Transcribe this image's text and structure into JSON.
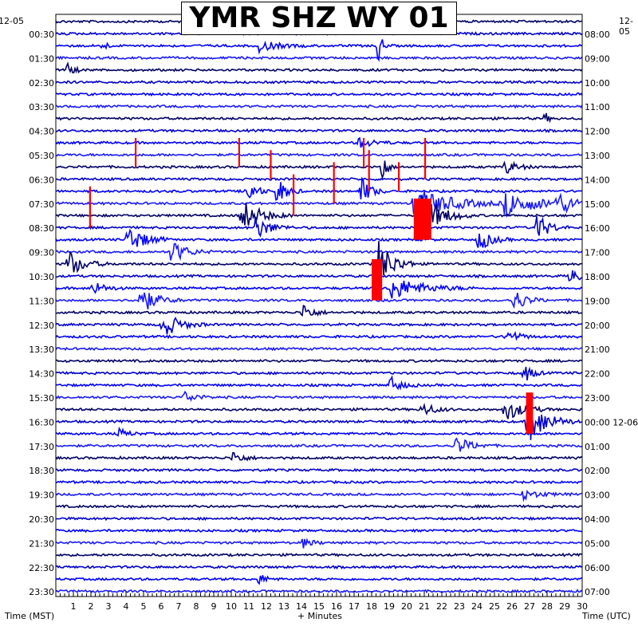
{
  "chart_data": {
    "type": "helicorder",
    "title": "YMR SHZ WY 01",
    "start_date_left": "12-05",
    "start_date_right": "12-05",
    "xlabel": "+ Minutes",
    "left_axis_title": "Time (MST)",
    "right_axis_title": "Time (UTC)",
    "x_ticks": [
      "1",
      "2",
      "3",
      "4",
      "5",
      "6",
      "7",
      "8",
      "9",
      "10",
      "11",
      "12",
      "13",
      "14",
      "15",
      "16",
      "17",
      "18",
      "19",
      "20",
      "21",
      "22",
      "23",
      "24",
      "25",
      "26",
      "27",
      "28",
      "29",
      "30"
    ],
    "xlim": [
      0,
      30
    ],
    "left_labels": [
      "00:30",
      "01:30",
      "02:30",
      "03:30",
      "04:30",
      "05:30",
      "06:30",
      "07:30",
      "08:30",
      "09:30",
      "10:30",
      "11:30",
      "12:30",
      "13:30",
      "14:30",
      "15:30",
      "16:30",
      "17:30",
      "18:30",
      "19:30",
      "20:30",
      "21:30",
      "22:30",
      "23:30"
    ],
    "right_labels": [
      "08:00",
      "09:00",
      "10:00",
      "11:00",
      "12:00",
      "13:00",
      "14:00",
      "15:00",
      "16:00",
      "17:00",
      "18:00",
      "19:00",
      "20:00",
      "21:00",
      "22:00",
      "23:00",
      "00:00 12-06",
      "01:00",
      "02:00",
      "03:00",
      "04:00",
      "05:00",
      "06:00",
      "07:00"
    ],
    "trace_colors": [
      "#000066",
      "#0000cc",
      "#0000ff",
      "#1a1aff"
    ],
    "clip_color": "#ff0000",
    "events": [
      {
        "row": 0,
        "minute": 13.9,
        "amp": 2.5,
        "dur": 0.3
      },
      {
        "row": 2,
        "minute": 2.6,
        "amp": 1.5,
        "dur": 0.3
      },
      {
        "row": 2,
        "minute": 11.5,
        "amp": 1.2,
        "dur": 1.5
      },
      {
        "row": 2,
        "minute": 18.3,
        "amp": 4,
        "dur": 0.3
      },
      {
        "row": 4,
        "minute": 0.6,
        "amp": 1.5,
        "dur": 0.5
      },
      {
        "row": 8,
        "minute": 27.8,
        "amp": 1.2,
        "dur": 0.3
      },
      {
        "row": 10,
        "minute": 17.2,
        "amp": 1.2,
        "dur": 1.2
      },
      {
        "row": 12,
        "minute": 18.5,
        "amp": 4,
        "dur": 0.4
      },
      {
        "row": 12,
        "minute": 25.5,
        "amp": 1.5,
        "dur": 1.0
      },
      {
        "row": 14,
        "minute": 10.8,
        "amp": 3,
        "dur": 0.7
      },
      {
        "row": 14,
        "minute": 12.5,
        "amp": 3,
        "dur": 0.8
      },
      {
        "row": 14,
        "minute": 17.3,
        "amp": 3,
        "dur": 0.8
      },
      {
        "row": 15,
        "minute": 20.3,
        "amp": 3.5,
        "dur": 3
      },
      {
        "row": 15,
        "minute": 25.5,
        "amp": 2.5,
        "dur": 3
      },
      {
        "row": 15,
        "minute": 28.5,
        "amp": 2,
        "dur": 1.5
      },
      {
        "row": 16,
        "minute": 10.5,
        "amp": 3.5,
        "dur": 1.5
      },
      {
        "row": 16,
        "minute": 20.5,
        "amp": 6,
        "dur": 1.6
      },
      {
        "row": 17,
        "minute": 11.3,
        "amp": 2.5,
        "dur": 1.2
      },
      {
        "row": 17,
        "minute": 27.3,
        "amp": 3,
        "dur": 1.0
      },
      {
        "row": 18,
        "minute": 4.0,
        "amp": 3,
        "dur": 1.4
      },
      {
        "row": 18,
        "minute": 24.0,
        "amp": 2.5,
        "dur": 1.0
      },
      {
        "row": 19,
        "minute": 6.5,
        "amp": 2.5,
        "dur": 1.2
      },
      {
        "row": 20,
        "minute": 0.6,
        "amp": 3,
        "dur": 1.2
      },
      {
        "row": 20,
        "minute": 18.2,
        "amp": 6,
        "dur": 1.2
      },
      {
        "row": 21,
        "minute": 29.2,
        "amp": 1.5,
        "dur": 1.0
      },
      {
        "row": 22,
        "minute": 2.0,
        "amp": 1.5,
        "dur": 1.0
      },
      {
        "row": 22,
        "minute": 19.0,
        "amp": 2.5,
        "dur": 2.5
      },
      {
        "row": 23,
        "minute": 4.7,
        "amp": 3,
        "dur": 1.3
      },
      {
        "row": 23,
        "minute": 26.0,
        "amp": 2.5,
        "dur": 1.0
      },
      {
        "row": 24,
        "minute": 14.0,
        "amp": 2,
        "dur": 0.8
      },
      {
        "row": 25,
        "minute": 6.0,
        "amp": 3,
        "dur": 1.3
      },
      {
        "row": 26,
        "minute": 25.6,
        "amp": 1.5,
        "dur": 1.0
      },
      {
        "row": 29,
        "minute": 26.6,
        "amp": 2,
        "dur": 0.7
      },
      {
        "row": 30,
        "minute": 18.9,
        "amp": 2,
        "dur": 0.9
      },
      {
        "row": 31,
        "minute": 7.2,
        "amp": 1.2,
        "dur": 1.0
      },
      {
        "row": 32,
        "minute": 20.8,
        "amp": 1.5,
        "dur": 1.0
      },
      {
        "row": 32,
        "minute": 25.5,
        "amp": 2.5,
        "dur": 1.4
      },
      {
        "row": 33,
        "minute": 26.8,
        "amp": 5,
        "dur": 1.5
      },
      {
        "row": 34,
        "minute": 3.5,
        "amp": 1,
        "dur": 0.8
      },
      {
        "row": 35,
        "minute": 22.7,
        "amp": 2,
        "dur": 1.2
      },
      {
        "row": 36,
        "minute": 10.0,
        "amp": 1.5,
        "dur": 0.8
      },
      {
        "row": 39,
        "minute": 26.5,
        "amp": 1,
        "dur": 1.5
      },
      {
        "row": 43,
        "minute": 14.0,
        "amp": 1,
        "dur": 0.8
      },
      {
        "row": 46,
        "minute": 11.5,
        "amp": 1.2,
        "dur": 0.6
      }
    ],
    "clipped_events": [
      {
        "row": 15,
        "minute": 20.4,
        "width": 1.0,
        "rows": 3
      },
      {
        "row": 20,
        "minute": 18.0,
        "width": 0.6,
        "rows": 3
      },
      {
        "row": 31,
        "minute": 26.8,
        "width": 0.4,
        "rows": 3
      },
      {
        "row": 10,
        "minute": 10.4,
        "width": 0.1,
        "rows": 2
      },
      {
        "row": 10,
        "minute": 17.5,
        "width": 0.1,
        "rows": 2
      },
      {
        "row": 10,
        "minute": 21.0,
        "width": 0.1,
        "rows": 3
      },
      {
        "row": 10,
        "minute": 4.5,
        "width": 0.1,
        "rows": 2
      },
      {
        "row": 14,
        "minute": 1.9,
        "width": 0.1,
        "rows": 3
      },
      {
        "row": 13,
        "minute": 13.5,
        "width": 0.1,
        "rows": 3
      },
      {
        "row": 12,
        "minute": 15.8,
        "width": 0.1,
        "rows": 3
      },
      {
        "row": 11,
        "minute": 17.8,
        "width": 0.1,
        "rows": 3
      },
      {
        "row": 11,
        "minute": 12.2,
        "width": 0.1,
        "rows": 2
      },
      {
        "row": 12,
        "minute": 19.5,
        "width": 0.1,
        "rows": 2
      }
    ]
  }
}
